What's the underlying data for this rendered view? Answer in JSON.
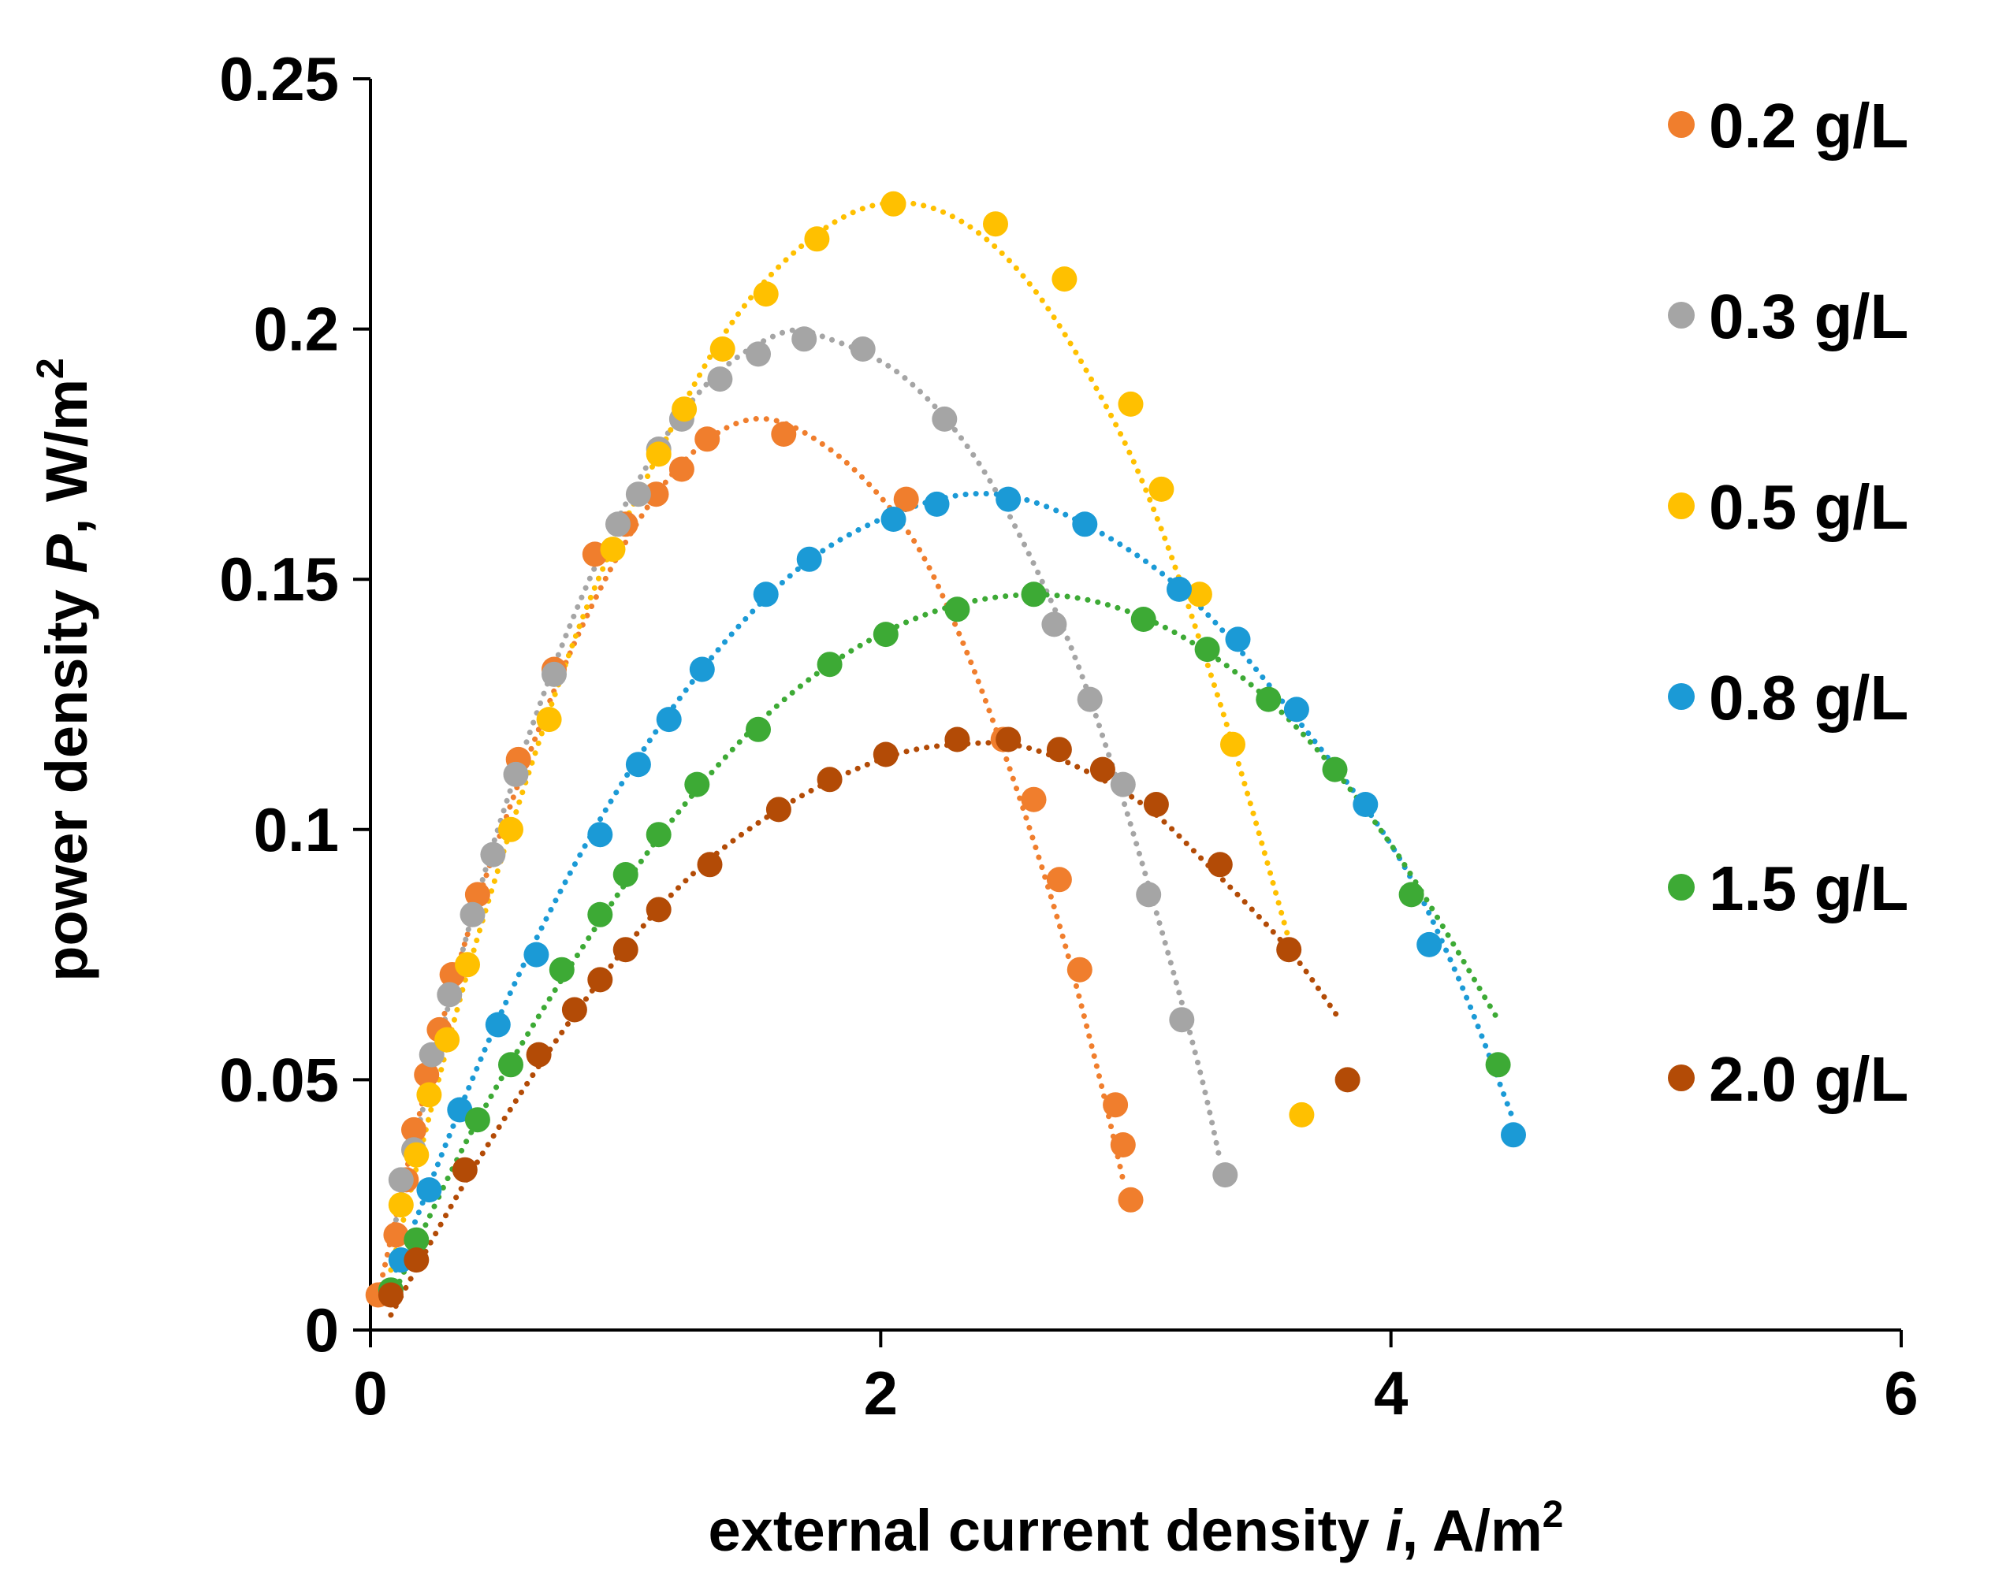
{
  "chart_data": {
    "type": "scatter",
    "title": "",
    "xlabel": {
      "prefix": "external current density ",
      "var": "i",
      "unit": ", A/m",
      "sup": "2"
    },
    "ylabel": {
      "prefix": "power density ",
      "var": "P",
      "unit": ", W/m",
      "sup": "2"
    },
    "xlim": [
      0,
      6
    ],
    "ylim": [
      0,
      0.25
    ],
    "xticks": [
      0,
      2,
      4,
      6
    ],
    "xtick_labels": [
      "0",
      "2",
      "4",
      "6"
    ],
    "yticks": [
      0,
      0.05,
      0.1,
      0.15,
      0.2,
      0.25
    ],
    "ytick_labels": [
      "0",
      "0.05",
      "0.1",
      "0.15",
      "0.2",
      "0.25"
    ],
    "grid": false,
    "legend_position": "right",
    "trendline": "dotted polynomial fit per series",
    "series": [
      {
        "name": "0.2 g/L",
        "color": "#F07E2D",
        "points": [
          [
            0.03,
            0.007
          ],
          [
            0.1,
            0.019
          ],
          [
            0.14,
            0.03
          ],
          [
            0.17,
            0.04
          ],
          [
            0.22,
            0.051
          ],
          [
            0.27,
            0.06
          ],
          [
            0.32,
            0.071
          ],
          [
            0.42,
            0.087
          ],
          [
            0.58,
            0.114
          ],
          [
            0.72,
            0.132
          ],
          [
            0.88,
            0.155
          ],
          [
            1.0,
            0.161
          ],
          [
            1.12,
            0.167
          ],
          [
            1.22,
            0.172
          ],
          [
            1.32,
            0.178
          ],
          [
            1.62,
            0.179
          ],
          [
            2.1,
            0.166
          ],
          [
            2.48,
            0.118
          ],
          [
            2.6,
            0.106
          ],
          [
            2.7,
            0.09
          ],
          [
            2.78,
            0.072
          ],
          [
            2.92,
            0.045
          ],
          [
            2.95,
            0.037
          ],
          [
            2.98,
            0.026
          ]
        ],
        "trend": [
          [
            0.03,
            0.007
          ],
          [
            0.3,
            0.065
          ],
          [
            0.6,
            0.112
          ],
          [
            0.9,
            0.148
          ],
          [
            1.2,
            0.172
          ],
          [
            1.5,
            0.182
          ],
          [
            1.8,
            0.176
          ],
          [
            2.1,
            0.16
          ],
          [
            2.3,
            0.14
          ],
          [
            2.5,
            0.113
          ],
          [
            2.7,
            0.081
          ],
          [
            2.85,
            0.052
          ],
          [
            2.95,
            0.03
          ]
        ]
      },
      {
        "name": "0.3 g/L",
        "color": "#A5A5A5",
        "points": [
          [
            0.12,
            0.03
          ],
          [
            0.17,
            0.036
          ],
          [
            0.24,
            0.055
          ],
          [
            0.31,
            0.067
          ],
          [
            0.4,
            0.083
          ],
          [
            0.48,
            0.095
          ],
          [
            0.57,
            0.111
          ],
          [
            0.72,
            0.131
          ],
          [
            0.97,
            0.161
          ],
          [
            1.05,
            0.167
          ],
          [
            1.13,
            0.176
          ],
          [
            1.22,
            0.182
          ],
          [
            1.37,
            0.19
          ],
          [
            1.52,
            0.195
          ],
          [
            1.7,
            0.198
          ],
          [
            1.93,
            0.196
          ],
          [
            2.25,
            0.182
          ],
          [
            2.68,
            0.141
          ],
          [
            2.82,
            0.126
          ],
          [
            2.95,
            0.109
          ],
          [
            3.05,
            0.087
          ],
          [
            3.18,
            0.062
          ],
          [
            3.35,
            0.031
          ]
        ],
        "trend": [
          [
            0.1,
            0.022
          ],
          [
            0.4,
            0.083
          ],
          [
            0.7,
            0.13
          ],
          [
            1.0,
            0.165
          ],
          [
            1.3,
            0.188
          ],
          [
            1.6,
            0.199
          ],
          [
            1.8,
            0.198
          ],
          [
            2.1,
            0.19
          ],
          [
            2.4,
            0.172
          ],
          [
            2.7,
            0.142
          ],
          [
            2.9,
            0.114
          ],
          [
            3.1,
            0.08
          ],
          [
            3.25,
            0.052
          ],
          [
            3.33,
            0.034
          ]
        ]
      },
      {
        "name": "0.5 g/L",
        "color": "#FFC000",
        "points": [
          [
            0.12,
            0.025
          ],
          [
            0.18,
            0.035
          ],
          [
            0.23,
            0.047
          ],
          [
            0.3,
            0.058
          ],
          [
            0.38,
            0.073
          ],
          [
            0.55,
            0.1
          ],
          [
            0.7,
            0.122
          ],
          [
            0.95,
            0.156
          ],
          [
            1.13,
            0.175
          ],
          [
            1.23,
            0.184
          ],
          [
            1.38,
            0.196
          ],
          [
            1.55,
            0.207
          ],
          [
            1.75,
            0.218
          ],
          [
            2.05,
            0.225
          ],
          [
            2.45,
            0.221
          ],
          [
            2.72,
            0.21
          ],
          [
            2.98,
            0.185
          ],
          [
            3.1,
            0.168
          ],
          [
            3.25,
            0.147
          ],
          [
            3.38,
            0.117
          ],
          [
            3.65,
            0.043
          ]
        ],
        "trend": [
          [
            0.08,
            0.012
          ],
          [
            0.4,
            0.075
          ],
          [
            0.8,
            0.138
          ],
          [
            1.1,
            0.172
          ],
          [
            1.4,
            0.2
          ],
          [
            1.7,
            0.217
          ],
          [
            2.0,
            0.225
          ],
          [
            2.3,
            0.222
          ],
          [
            2.6,
            0.208
          ],
          [
            2.9,
            0.183
          ],
          [
            3.1,
            0.16
          ],
          [
            3.3,
            0.13
          ],
          [
            3.45,
            0.105
          ],
          [
            3.6,
            0.078
          ]
        ]
      },
      {
        "name": "0.8 g/L",
        "color": "#1B9AD6",
        "points": [
          [
            0.12,
            0.014
          ],
          [
            0.23,
            0.028
          ],
          [
            0.35,
            0.044
          ],
          [
            0.5,
            0.061
          ],
          [
            0.65,
            0.075
          ],
          [
            0.9,
            0.099
          ],
          [
            1.05,
            0.113
          ],
          [
            1.17,
            0.122
          ],
          [
            1.3,
            0.132
          ],
          [
            1.55,
            0.147
          ],
          [
            1.72,
            0.154
          ],
          [
            2.05,
            0.162
          ],
          [
            2.22,
            0.165
          ],
          [
            2.5,
            0.166
          ],
          [
            2.8,
            0.161
          ],
          [
            3.17,
            0.148
          ],
          [
            3.4,
            0.138
          ],
          [
            3.63,
            0.124
          ],
          [
            3.9,
            0.105
          ],
          [
            4.15,
            0.077
          ],
          [
            4.48,
            0.039
          ]
        ],
        "trend": [
          [
            0.1,
            0.012
          ],
          [
            0.5,
            0.062
          ],
          [
            0.9,
            0.102
          ],
          [
            1.3,
            0.132
          ],
          [
            1.7,
            0.153
          ],
          [
            2.1,
            0.164
          ],
          [
            2.45,
            0.167
          ],
          [
            2.8,
            0.161
          ],
          [
            3.2,
            0.147
          ],
          [
            3.6,
            0.124
          ],
          [
            4.0,
            0.097
          ],
          [
            4.25,
            0.072
          ],
          [
            4.48,
            0.042
          ]
        ]
      },
      {
        "name": "1.5 g/L",
        "color": "#3DAA35",
        "points": [
          [
            0.08,
            0.008
          ],
          [
            0.18,
            0.018
          ],
          [
            0.42,
            0.042
          ],
          [
            0.55,
            0.053
          ],
          [
            0.75,
            0.072
          ],
          [
            0.9,
            0.083
          ],
          [
            1.0,
            0.091
          ],
          [
            1.13,
            0.099
          ],
          [
            1.28,
            0.109
          ],
          [
            1.52,
            0.12
          ],
          [
            1.8,
            0.133
          ],
          [
            2.02,
            0.139
          ],
          [
            2.3,
            0.144
          ],
          [
            2.6,
            0.147
          ],
          [
            3.03,
            0.142
          ],
          [
            3.28,
            0.136
          ],
          [
            3.52,
            0.126
          ],
          [
            3.78,
            0.112
          ],
          [
            4.08,
            0.087
          ],
          [
            4.42,
            0.053
          ]
        ],
        "trend": [
          [
            0.08,
            0.006
          ],
          [
            0.4,
            0.04
          ],
          [
            0.8,
            0.074
          ],
          [
            1.2,
            0.103
          ],
          [
            1.6,
            0.125
          ],
          [
            2.0,
            0.139
          ],
          [
            2.4,
            0.146
          ],
          [
            2.8,
            0.146
          ],
          [
            3.2,
            0.138
          ],
          [
            3.6,
            0.122
          ],
          [
            4.0,
            0.097
          ],
          [
            4.42,
            0.062
          ]
        ]
      },
      {
        "name": "2.0 g/L",
        "color": "#B34B06",
        "points": [
          [
            0.08,
            0.007
          ],
          [
            0.18,
            0.014
          ],
          [
            0.37,
            0.032
          ],
          [
            0.66,
            0.055
          ],
          [
            0.8,
            0.064
          ],
          [
            0.9,
            0.07
          ],
          [
            1.0,
            0.076
          ],
          [
            1.13,
            0.084
          ],
          [
            1.33,
            0.093
          ],
          [
            1.6,
            0.104
          ],
          [
            1.8,
            0.11
          ],
          [
            2.02,
            0.115
          ],
          [
            2.3,
            0.118
          ],
          [
            2.5,
            0.118
          ],
          [
            2.7,
            0.116
          ],
          [
            2.87,
            0.112
          ],
          [
            3.08,
            0.105
          ],
          [
            3.33,
            0.093
          ],
          [
            3.6,
            0.076
          ],
          [
            3.83,
            0.05
          ]
        ],
        "trend": [
          [
            0.08,
            0.003
          ],
          [
            0.4,
            0.032
          ],
          [
            0.8,
            0.063
          ],
          [
            1.2,
            0.088
          ],
          [
            1.6,
            0.104
          ],
          [
            2.0,
            0.114
          ],
          [
            2.3,
            0.117
          ],
          [
            2.6,
            0.116
          ],
          [
            3.0,
            0.106
          ],
          [
            3.3,
            0.092
          ],
          [
            3.6,
            0.076
          ],
          [
            3.8,
            0.062
          ]
        ]
      }
    ]
  }
}
